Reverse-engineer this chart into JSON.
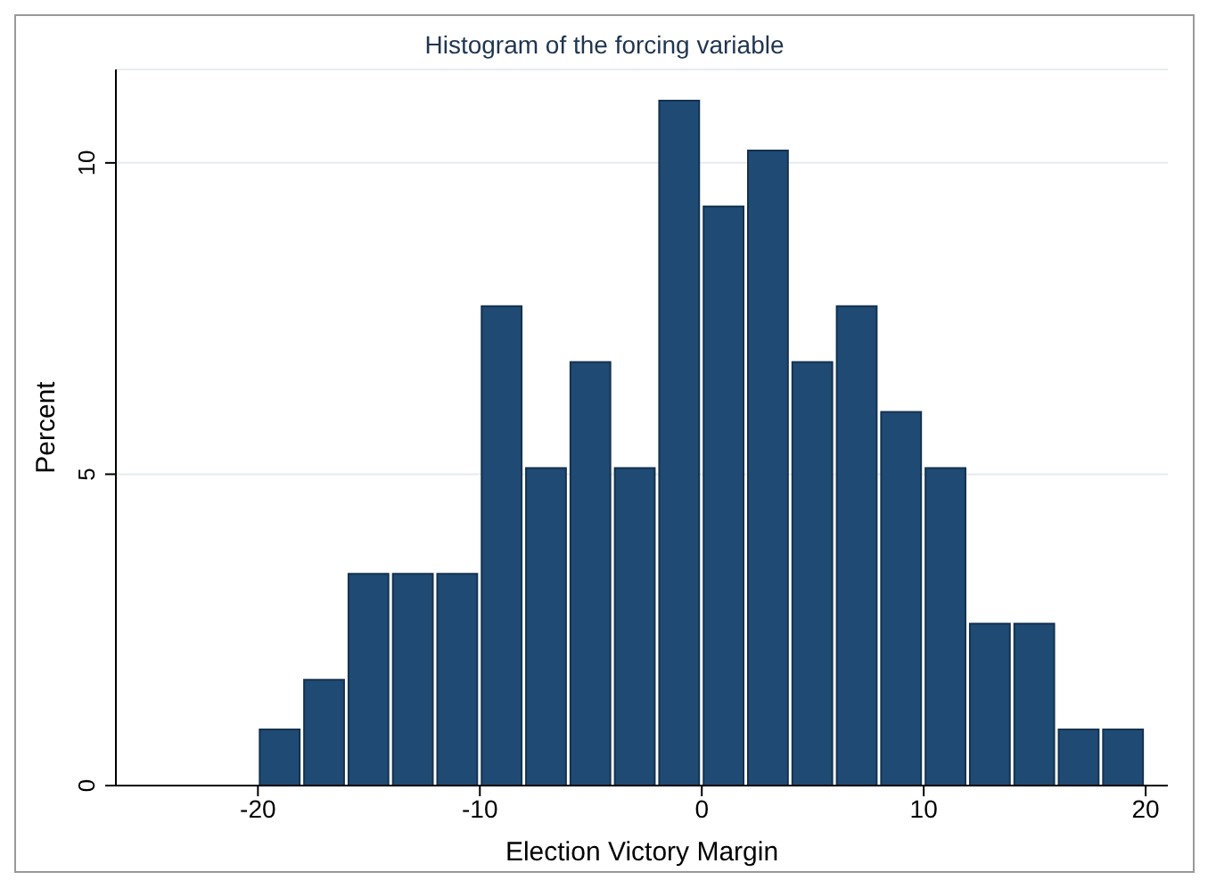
{
  "chart_data": {
    "type": "histogram",
    "title": "Histogram of the forcing variable",
    "xlabel": "Election Victory Margin",
    "ylabel": "Percent",
    "bins": [
      -20,
      -18,
      -16,
      -14,
      -12,
      -10,
      -8,
      -6,
      -4,
      -2,
      0,
      2,
      4,
      6,
      8,
      10,
      12,
      14,
      16,
      18,
      20
    ],
    "values": [
      0.9,
      1.7,
      3.4,
      3.4,
      3.4,
      7.7,
      5.1,
      6.8,
      5.1,
      11,
      9.3,
      10.2,
      6.8,
      7.7,
      6,
      5.1,
      2.6,
      2.6,
      0.9,
      0.9
    ],
    "color": "#1f4a73",
    "xlim": [
      -26.4,
      21
    ],
    "xticks": [
      -20,
      -10,
      0,
      10,
      20
    ],
    "ylim": [
      0,
      11.5
    ],
    "yticks": [
      0,
      5,
      10
    ],
    "grid": "y"
  }
}
